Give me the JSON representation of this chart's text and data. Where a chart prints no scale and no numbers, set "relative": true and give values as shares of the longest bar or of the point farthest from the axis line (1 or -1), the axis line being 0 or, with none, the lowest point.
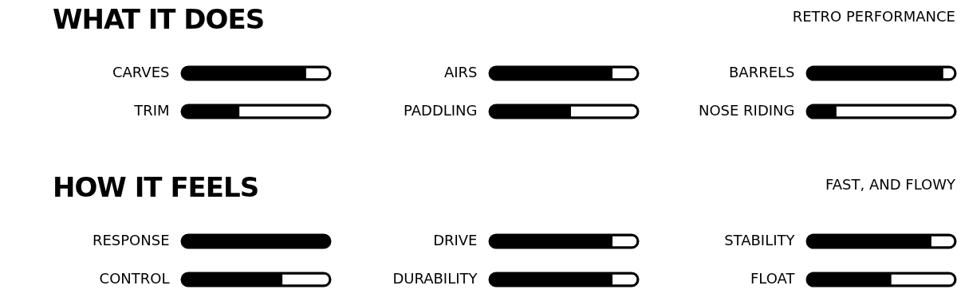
{
  "chart_data": [
    {
      "type": "bar",
      "orientation": "horizontal",
      "relative": true,
      "stacked": true,
      "title": "WHAT IT DOES",
      "categories": [
        "CARVES",
        "TRIM"
      ],
      "series": [
        {
          "color": "#000000",
          "values": [
            0.83,
            0.38
          ]
        },
        {
          "color": "#ffffff",
          "values": [
            0.17,
            0.62
          ]
        }
      ]
    },
    {
      "type": "bar",
      "orientation": "horizontal",
      "relative": true,
      "stacked": true,
      "categories": [
        "AIRS",
        "PADDLING"
      ],
      "series": [
        {
          "color": "#000000",
          "values": [
            0.82,
            0.54
          ]
        },
        {
          "color": "#ffffff",
          "values": [
            0.18,
            0.46
          ]
        }
      ]
    },
    {
      "type": "bar",
      "orientation": "horizontal",
      "relative": true,
      "stacked": true,
      "title": "RETRO PERFORMANCE",
      "categories": [
        "BARRELS",
        "NOSE RIDING"
      ],
      "series": [
        {
          "color": "#000000",
          "values": [
            0.91,
            0.19
          ]
        },
        {
          "color": "#ffffff",
          "values": [
            0.09,
            0.81
          ]
        }
      ]
    },
    {
      "type": "bar",
      "orientation": "horizontal",
      "relative": true,
      "stacked": true,
      "title": "HOW IT FEELS",
      "categories": [
        "RESPONSE",
        "CONTROL"
      ],
      "series": [
        {
          "color": "#000000",
          "values": [
            1.0,
            0.67
          ]
        },
        {
          "color": "#ffffff",
          "values": [
            0.0,
            0.33
          ]
        }
      ]
    },
    {
      "type": "bar",
      "orientation": "horizontal",
      "relative": true,
      "stacked": true,
      "categories": [
        "DRIVE",
        "DURABILITY"
      ],
      "series": [
        {
          "color": "#000000",
          "values": [
            0.82,
            0.82
          ]
        },
        {
          "color": "#ffffff",
          "values": [
            0.18,
            0.18
          ]
        }
      ]
    },
    {
      "type": "bar",
      "orientation": "horizontal",
      "relative": true,
      "stacked": true,
      "title": "FAST, AND FLOWY",
      "categories": [
        "STABILITY",
        "FLOAT"
      ],
      "series": [
        {
          "color": "#000000",
          "values": [
            0.83,
            0.56
          ]
        },
        {
          "color": "#ffffff",
          "values": [
            0.17,
            0.44
          ]
        }
      ]
    }
  ]
}
